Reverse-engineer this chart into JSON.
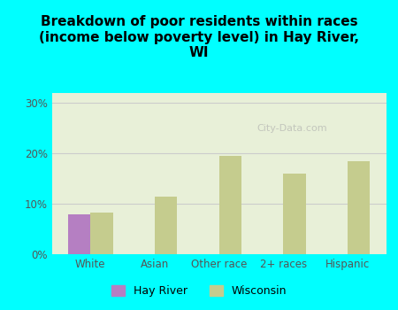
{
  "title": "Breakdown of poor residents within races\n(income below poverty level) in Hay River,\nWI",
  "categories": [
    "White",
    "Asian",
    "Other race",
    "2+ races",
    "Hispanic"
  ],
  "hay_river_values": [
    8.0,
    0,
    0,
    0,
    0
  ],
  "wisconsin_values": [
    8.2,
    11.5,
    19.5,
    16.0,
    18.5
  ],
  "hay_river_color": "#b57fc2",
  "wisconsin_color": "#c5cc8e",
  "background_outer": "#00ffff",
  "background_inner": "#e8f0d8",
  "yticks": [
    0,
    10,
    20,
    30
  ],
  "ytick_labels": [
    "0%",
    "10%",
    "20%",
    "30%"
  ],
  "ylim": [
    0,
    32
  ],
  "bar_width": 0.35,
  "title_fontsize": 11,
  "legend_hay_river": "Hay River",
  "legend_wisconsin": "Wisconsin",
  "watermark": "City-Data.com",
  "grid_color": "#cccccc"
}
